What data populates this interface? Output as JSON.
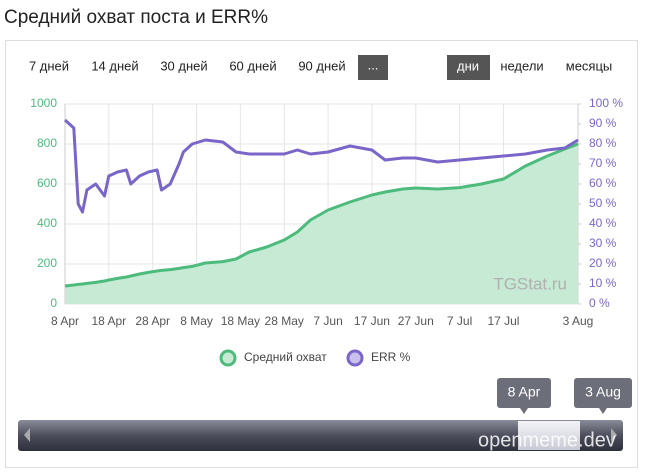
{
  "chart_data": {
    "type": "line",
    "title": "Средний охват поста и ERR%",
    "x": [
      "8 Apr",
      "10 Apr",
      "11 Apr",
      "12 Apr",
      "13 Apr",
      "15 Apr",
      "17 Apr",
      "18 Apr",
      "20 Apr",
      "22 Apr",
      "23 Apr",
      "25 Apr",
      "27 Apr",
      "29 Apr",
      "30 Apr",
      "2 May",
      "4 May",
      "5 May",
      "7 May",
      "10 May",
      "14 May",
      "17 May",
      "20 May",
      "24 May",
      "28 May",
      "31 May",
      "3 Jun",
      "7 Jun",
      "12 Jun",
      "17 Jun",
      "20 Jun",
      "24 Jun",
      "27 Jun",
      "2 Jul",
      "7 Jul",
      "12 Jul",
      "17 Jul",
      "22 Jul",
      "27 Jul",
      "31 Jul",
      "3 Aug"
    ],
    "xlim": [
      "8 Apr",
      "3 Aug"
    ],
    "xticks": [
      "8 Apr",
      "18 Apr",
      "28 Apr",
      "8 May",
      "18 May",
      "28 May",
      "7 Jun",
      "17 Jun",
      "27 Jun",
      "7 Jul",
      "17 Jul",
      "3 Aug"
    ],
    "ylim": [
      0,
      1000
    ],
    "yticks": [
      0,
      200,
      400,
      600,
      800,
      1000
    ],
    "y2lim": [
      0,
      100
    ],
    "y2ticks": [
      {
        "value": 0,
        "label": "0 %"
      },
      {
        "value": 10,
        "label": "10 %"
      },
      {
        "value": 20,
        "label": "20 %"
      },
      {
        "value": 30,
        "label": "30 %"
      },
      {
        "value": 40,
        "label": "40 %"
      },
      {
        "value": 50,
        "label": "50 %"
      },
      {
        "value": 60,
        "label": "60 %"
      },
      {
        "value": 70,
        "label": "70 %"
      },
      {
        "value": 80,
        "label": "80 %"
      },
      {
        "value": 90,
        "label": "90 %"
      },
      {
        "value": 100,
        "label": "100 %"
      }
    ],
    "grid": true,
    "series": [
      {
        "name": "Средний охват",
        "color": "#4dbb7c",
        "fill": "#c6ead3",
        "values": [
          90,
          95,
          98,
          100,
          103,
          108,
          115,
          120,
          128,
          135,
          140,
          150,
          158,
          165,
          168,
          172,
          178,
          182,
          188,
          205,
          212,
          225,
          260,
          285,
          320,
          360,
          420,
          470,
          510,
          545,
          560,
          575,
          580,
          575,
          582,
          600,
          625,
          690,
          740,
          775,
          800
        ]
      },
      {
        "name": "ERR %",
        "color": "#7a66c9",
        "axis": "y2",
        "values": [
          92,
          88,
          50,
          46,
          57,
          60,
          54,
          64,
          66,
          67,
          60,
          64,
          66,
          67,
          57,
          60,
          70,
          76,
          80,
          82,
          81,
          76,
          75,
          75,
          75,
          77,
          75,
          76,
          79,
          77,
          72,
          73,
          73,
          71,
          72,
          73,
          74,
          75,
          77,
          78,
          82
        ]
      }
    ]
  },
  "controls": {
    "ranges": [
      "7 дней",
      "14 дней",
      "30 дней",
      "60 дней",
      "90 дней",
      "..."
    ],
    "units": [
      "дни",
      "недели",
      "месяцы"
    ]
  },
  "navigator": {
    "start": "8 Apr",
    "end": "3 Aug"
  },
  "watermarks": [
    "TGStat.ru",
    "openmeme.dev"
  ]
}
